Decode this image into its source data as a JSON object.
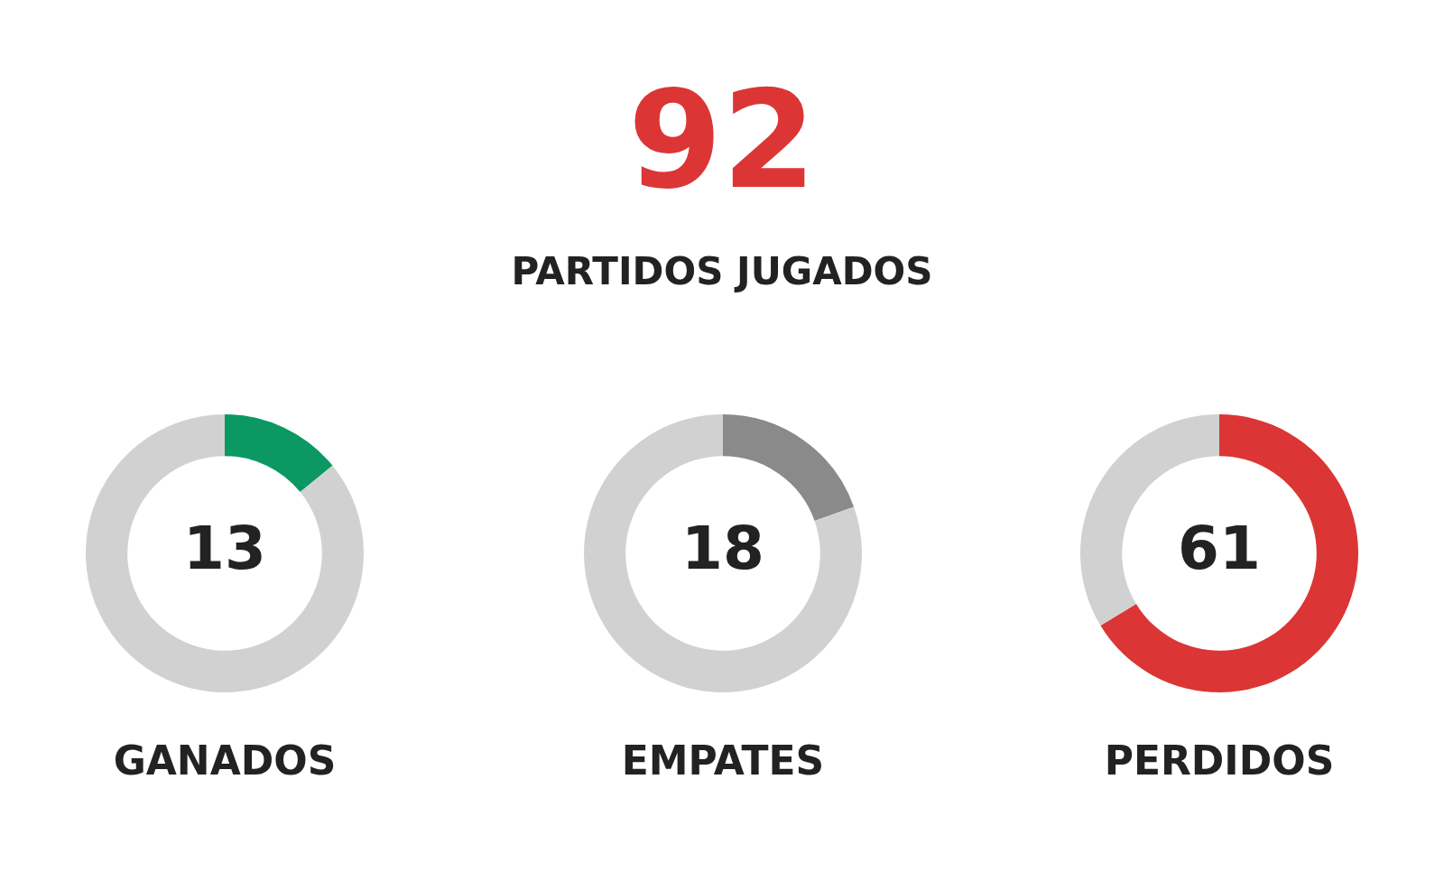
{
  "chart_data": [
    {
      "type": "other",
      "title": "92",
      "subtitle": "PARTIDOS JUGADOS"
    },
    {
      "type": "donut",
      "title": "GANADOS",
      "categories": [
        null,
        null
      ],
      "values": [
        13,
        79
      ],
      "colors": [
        "#0b9862",
        "#d1d1d1"
      ],
      "value_labels": [
        "13",
        null
      ]
    },
    {
      "type": "donut",
      "title": "EMPATES",
      "categories": [
        null,
        null
      ],
      "values": [
        18,
        74
      ],
      "colors": [
        "#8a8a8a",
        "#d1d1d1"
      ],
      "value_labels": [
        "18",
        null
      ]
    },
    {
      "type": "donut",
      "title": "PERDIDOS",
      "categories": [
        null,
        null
      ],
      "values": [
        61,
        31
      ],
      "colors": [
        "#dc3535",
        "#d1d1d1"
      ],
      "value_labels": [
        "61",
        null
      ]
    }
  ]
}
